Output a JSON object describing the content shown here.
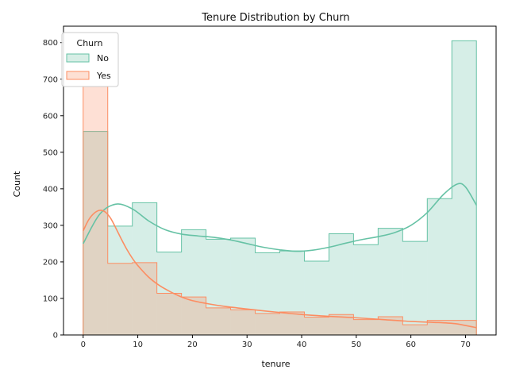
{
  "chart_data": {
    "type": "histogram",
    "title": "Tenure Distribution by Churn",
    "xlabel": "tenure",
    "ylabel": "Count",
    "xlim": [
      -3.6,
      75.6
    ],
    "ylim": [
      0,
      845
    ],
    "xticks": [
      0,
      10,
      20,
      30,
      40,
      50,
      60,
      70
    ],
    "yticks": [
      0,
      100,
      200,
      300,
      400,
      500,
      600,
      700,
      800
    ],
    "bin_edges": [
      0,
      4.5,
      9,
      13.5,
      18,
      22.5,
      27,
      31.5,
      36,
      40.5,
      45,
      49.5,
      54,
      58.5,
      63,
      67.5,
      72
    ],
    "legend": {
      "title": "Churn",
      "position": "top-left"
    },
    "series": [
      {
        "name": "No",
        "color": "#66c2a5",
        "fill": "#d7eee6",
        "counts": [
          557,
          298,
          362,
          227,
          288,
          262,
          265,
          225,
          230,
          202,
          277,
          247,
          292,
          256,
          373,
          805
        ],
        "kde": [
          [
            0,
            250
          ],
          [
            3,
            330
          ],
          [
            6,
            358
          ],
          [
            9,
            345
          ],
          [
            12,
            312
          ],
          [
            15,
            288
          ],
          [
            18,
            276
          ],
          [
            21,
            271
          ],
          [
            24,
            267
          ],
          [
            27,
            260
          ],
          [
            30,
            250
          ],
          [
            33,
            240
          ],
          [
            36,
            233
          ],
          [
            39,
            229
          ],
          [
            42,
            232
          ],
          [
            45,
            240
          ],
          [
            48,
            251
          ],
          [
            51,
            261
          ],
          [
            54,
            269
          ],
          [
            57,
            280
          ],
          [
            60,
            300
          ],
          [
            63,
            335
          ],
          [
            66,
            385
          ],
          [
            68.5,
            413
          ],
          [
            70,
            405
          ],
          [
            72,
            355
          ]
        ]
      },
      {
        "name": "Yes",
        "color": "#fc8d62",
        "fill": "#fde0d4",
        "counts": [
          680,
          196,
          198,
          114,
          104,
          74,
          69,
          59,
          63,
          49,
          56,
          42,
          50,
          28,
          40,
          40
        ],
        "kde": [
          [
            0,
            285
          ],
          [
            1,
            315
          ],
          [
            2,
            333
          ],
          [
            3,
            341
          ],
          [
            4,
            337
          ],
          [
            5,
            320
          ],
          [
            6,
            292
          ],
          [
            7,
            262
          ],
          [
            8,
            234
          ],
          [
            9,
            210
          ],
          [
            10,
            190
          ],
          [
            12,
            158
          ],
          [
            14,
            135
          ],
          [
            16,
            118
          ],
          [
            18,
            104
          ],
          [
            20,
            94
          ],
          [
            23,
            85
          ],
          [
            26,
            78
          ],
          [
            30,
            71
          ],
          [
            35,
            63
          ],
          [
            40,
            56
          ],
          [
            45,
            51
          ],
          [
            50,
            47
          ],
          [
            55,
            42
          ],
          [
            60,
            37
          ],
          [
            65,
            34
          ],
          [
            68,
            31
          ],
          [
            70,
            26
          ],
          [
            72,
            20
          ]
        ]
      }
    ]
  }
}
